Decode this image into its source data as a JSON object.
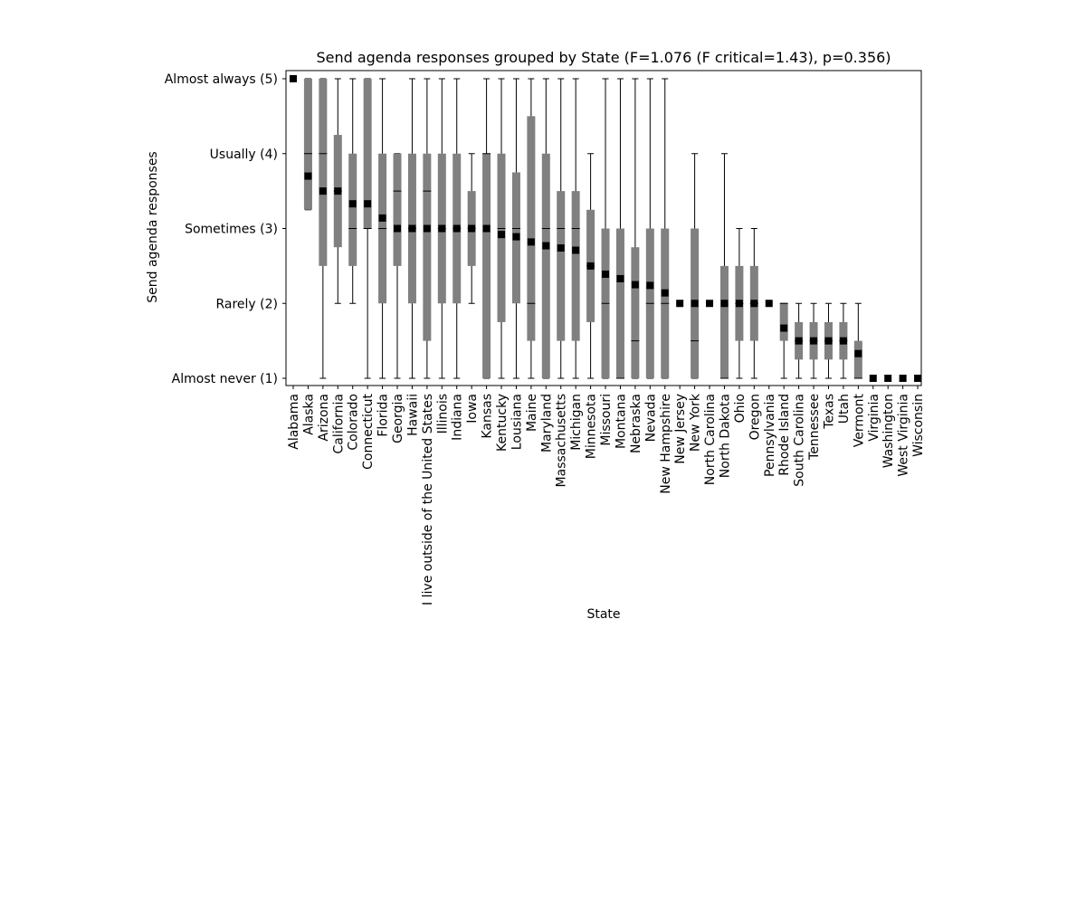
{
  "chart_data": {
    "type": "box",
    "title": "Send agenda responses grouped by State (F=1.076 (F critical=1.43), p=0.356)",
    "xlabel": "State",
    "ylabel": "Send agenda responses",
    "ylim": [
      0.9,
      5.1
    ],
    "yticks": [
      {
        "value": 1,
        "label": "Almost never (1)"
      },
      {
        "value": 2,
        "label": "Rarely (2)"
      },
      {
        "value": 3,
        "label": "Sometimes (3)"
      },
      {
        "value": 4,
        "label": "Usually (4)"
      },
      {
        "value": 5,
        "label": "Almost always (5)"
      }
    ],
    "grid": false,
    "box_color": "#808080",
    "mean_marker_color": "#000000",
    "categories": [
      "Alabama",
      "Alaska",
      "Arizona",
      "California",
      "Colorado",
      "Connecticut",
      "Florida",
      "Georgia",
      "Hawaii",
      "I live outside of the United States",
      "Illinois",
      "Indiana",
      "Iowa",
      "Kansas",
      "Kentucky",
      "Lousiana",
      "Maine",
      "Maryland",
      "Massachusetts",
      "Michigan",
      "Minnesota",
      "Missouri",
      "Montana",
      "Nebraska",
      "Nevada",
      "New Hampshire",
      "New Jersey",
      "New York",
      "North Carolina",
      "North Dakota",
      "Ohio",
      "Oregon",
      "Pennsylvania",
      "Rhode Island",
      "South Carolina",
      "Tennessee",
      "Texas",
      "Utah",
      "Vermont",
      "Virginia",
      "Washington",
      "West Virginia",
      "Wisconsin"
    ],
    "boxes": [
      {
        "whislo": 5,
        "q1": 5,
        "med": 5,
        "q3": 5,
        "whishi": 5,
        "mean": 5
      },
      {
        "whislo": 3.25,
        "q1": 3.25,
        "med": 4,
        "q3": 5,
        "whishi": 5,
        "mean": 3.7
      },
      {
        "whislo": 1,
        "q1": 2.5,
        "med": 4,
        "q3": 5,
        "whishi": 5,
        "mean": 3.5
      },
      {
        "whislo": 2,
        "q1": 2.75,
        "med": 3.5,
        "q3": 4.25,
        "whishi": 5,
        "mean": 3.5
      },
      {
        "whislo": 2,
        "q1": 2.5,
        "med": 3,
        "q3": 4,
        "whishi": 5,
        "mean": 3.33
      },
      {
        "whislo": 1,
        "q1": 3,
        "med": 3,
        "q3": 5,
        "whishi": 5,
        "mean": 3.33
      },
      {
        "whislo": 1,
        "q1": 2,
        "med": 3,
        "q3": 4,
        "whishi": 5,
        "mean": 3.14
      },
      {
        "whislo": 1,
        "q1": 2.5,
        "med": 3.5,
        "q3": 4,
        "whishi": 4,
        "mean": 3
      },
      {
        "whislo": 1,
        "q1": 2,
        "med": 3,
        "q3": 4,
        "whishi": 5,
        "mean": 3
      },
      {
        "whislo": 1,
        "q1": 1.5,
        "med": 3.5,
        "q3": 4,
        "whishi": 5,
        "mean": 3
      },
      {
        "whislo": 1,
        "q1": 2,
        "med": 3,
        "q3": 4,
        "whishi": 5,
        "mean": 3
      },
      {
        "whislo": 1,
        "q1": 2,
        "med": 3,
        "q3": 4,
        "whishi": 5,
        "mean": 3
      },
      {
        "whislo": 2,
        "q1": 2.5,
        "med": 3,
        "q3": 3.5,
        "whishi": 4,
        "mean": 3
      },
      {
        "whislo": 1,
        "q1": 1,
        "med": 4,
        "q3": 4,
        "whishi": 5,
        "mean": 3
      },
      {
        "whislo": 1,
        "q1": 1.75,
        "med": 3,
        "q3": 4,
        "whishi": 5,
        "mean": 2.92
      },
      {
        "whislo": 1,
        "q1": 2,
        "med": 3,
        "q3": 3.75,
        "whishi": 5,
        "mean": 2.89
      },
      {
        "whislo": 1,
        "q1": 1.5,
        "med": 2,
        "q3": 4.5,
        "whishi": 5,
        "mean": 2.82
      },
      {
        "whislo": 1,
        "q1": 1,
        "med": 3,
        "q3": 4,
        "whishi": 5,
        "mean": 2.77
      },
      {
        "whislo": 1,
        "q1": 1.5,
        "med": 3,
        "q3": 3.5,
        "whishi": 5,
        "mean": 2.74
      },
      {
        "whislo": 1,
        "q1": 1.5,
        "med": 3,
        "q3": 3.5,
        "whishi": 5,
        "mean": 2.71
      },
      {
        "whislo": 1,
        "q1": 1.75,
        "med": 2.5,
        "q3": 3.25,
        "whishi": 4,
        "mean": 2.5
      },
      {
        "whislo": 1,
        "q1": 1,
        "med": 2,
        "q3": 3,
        "whishi": 5,
        "mean": 2.39
      },
      {
        "whislo": 1,
        "q1": 1,
        "med": 1,
        "q3": 3,
        "whishi": 5,
        "mean": 2.33
      },
      {
        "whislo": 1,
        "q1": 1,
        "med": 1.5,
        "q3": 2.75,
        "whishi": 5,
        "mean": 2.25
      },
      {
        "whislo": 1,
        "q1": 1,
        "med": 2,
        "q3": 3,
        "whishi": 5,
        "mean": 2.24
      },
      {
        "whislo": 1,
        "q1": 1,
        "med": 2,
        "q3": 3,
        "whishi": 5,
        "mean": 2.14
      },
      {
        "whislo": 2,
        "q1": 2,
        "med": 2,
        "q3": 2,
        "whishi": 2,
        "mean": 2
      },
      {
        "whislo": 1,
        "q1": 1,
        "med": 1.5,
        "q3": 3,
        "whishi": 4,
        "mean": 2
      },
      {
        "whislo": 2,
        "q1": 2,
        "med": 2,
        "q3": 2,
        "whishi": 2,
        "mean": 2
      },
      {
        "whislo": 1,
        "q1": 1,
        "med": 1,
        "q3": 2.5,
        "whishi": 4,
        "mean": 2
      },
      {
        "whislo": 1,
        "q1": 1.5,
        "med": 2,
        "q3": 2.5,
        "whishi": 3,
        "mean": 2
      },
      {
        "whislo": 1,
        "q1": 1.5,
        "med": 2,
        "q3": 2.5,
        "whishi": 3,
        "mean": 2
      },
      {
        "whislo": 2,
        "q1": 2,
        "med": 2,
        "q3": 2,
        "whishi": 2,
        "mean": 2
      },
      {
        "whislo": 1,
        "q1": 1.5,
        "med": 2,
        "q3": 2,
        "whishi": 2,
        "mean": 1.67
      },
      {
        "whislo": 1,
        "q1": 1.25,
        "med": 1.5,
        "q3": 1.75,
        "whishi": 2,
        "mean": 1.5
      },
      {
        "whislo": 1,
        "q1": 1.25,
        "med": 1.5,
        "q3": 1.75,
        "whishi": 2,
        "mean": 1.5
      },
      {
        "whislo": 1,
        "q1": 1.25,
        "med": 1.5,
        "q3": 1.75,
        "whishi": 2,
        "mean": 1.5
      },
      {
        "whislo": 1,
        "q1": 1.25,
        "med": 1.5,
        "q3": 1.75,
        "whishi": 2,
        "mean": 1.5
      },
      {
        "whislo": 1,
        "q1": 1,
        "med": 1,
        "q3": 1.5,
        "whishi": 2,
        "mean": 1.33
      },
      {
        "whislo": 1,
        "q1": 1,
        "med": 1,
        "q3": 1,
        "whishi": 1,
        "mean": 1
      },
      {
        "whislo": 1,
        "q1": 1,
        "med": 1,
        "q3": 1,
        "whishi": 1,
        "mean": 1
      },
      {
        "whislo": 1,
        "q1": 1,
        "med": 1,
        "q3": 1,
        "whishi": 1,
        "mean": 1
      },
      {
        "whislo": 1,
        "q1": 1,
        "med": 1,
        "q3": 1,
        "whishi": 1,
        "mean": 1
      }
    ]
  }
}
